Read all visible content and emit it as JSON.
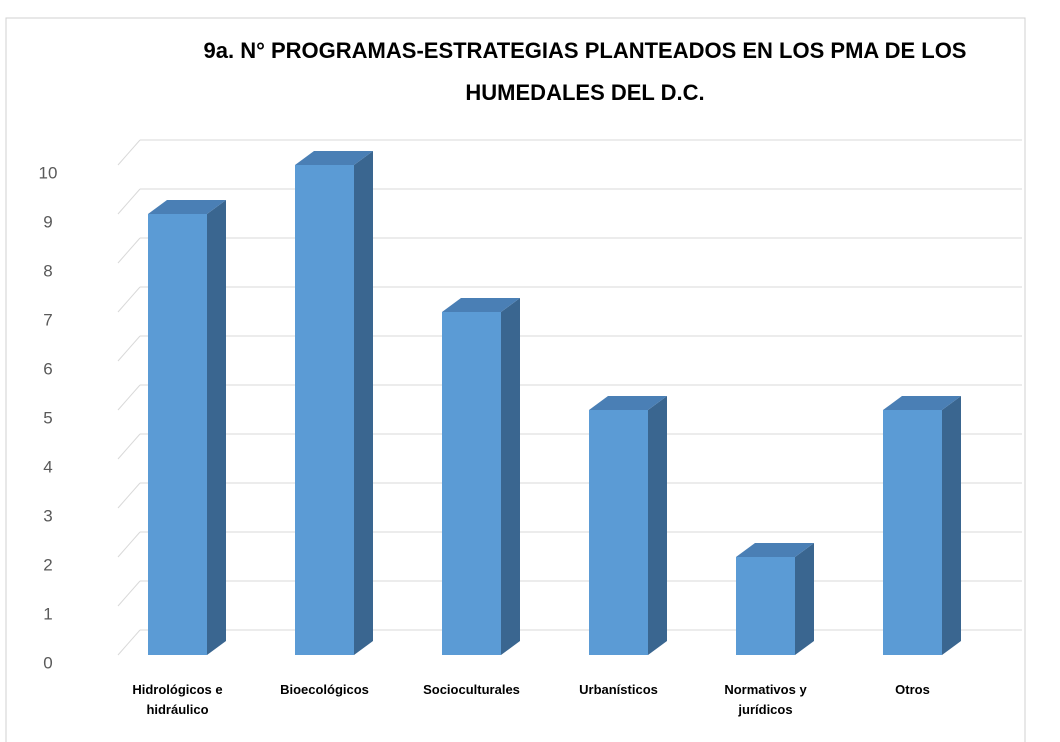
{
  "chart_data": {
    "type": "bar3d",
    "title": "9a. N° PROGRAMAS-ESTRATEGIAS PLANTEADOS EN LOS PMA DE LOS HUMEDALES DEL D.C.",
    "categories": [
      "Hidrológicos e hidráulico",
      "Bioecológicos",
      "Socioculturales",
      "Urbanísticos",
      "Normativos y jurídicos",
      "Otros"
    ],
    "values": [
      9,
      10,
      7,
      5,
      2,
      5
    ],
    "color": "#5b9bd5",
    "ylim": [
      0,
      10
    ],
    "yticks": [
      0,
      1,
      2,
      3,
      4,
      5,
      6,
      7,
      8,
      9,
      10
    ],
    "grid": true
  }
}
